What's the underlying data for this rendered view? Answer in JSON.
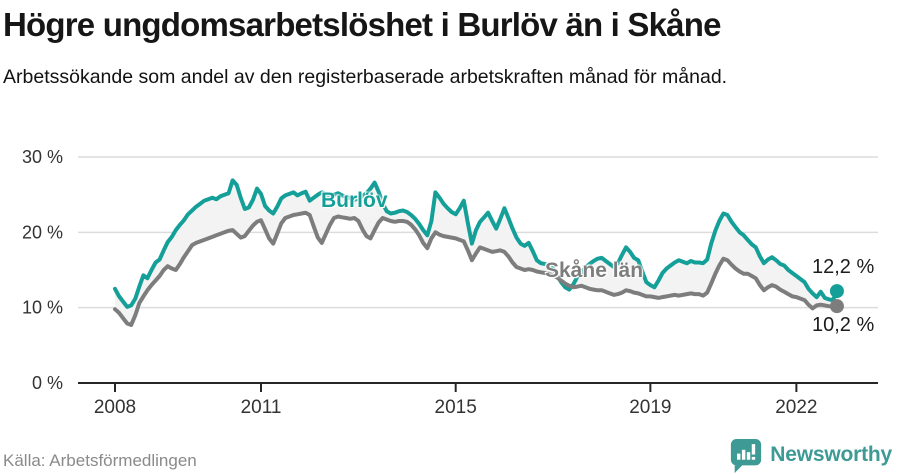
{
  "header": {
    "title": "Högre ungdomsarbetslöshet i Burlöv än i Skåne",
    "subtitle": "Arbetssökande som andel av den registerbaserade arbetskraften månad för månad."
  },
  "chart_data": {
    "type": "line",
    "title": "Högre ungdomsarbetslöshet i Burlöv än i Skåne",
    "x_unit": "month",
    "x_start": "2008-01",
    "x_end": "2022-11",
    "xticks": [
      2008,
      2011,
      2015,
      2019,
      2022
    ],
    "xtick_labels": [
      "2008",
      "2011",
      "2015",
      "2019",
      "2022"
    ],
    "yticks": [
      0,
      10,
      20,
      30
    ],
    "ytick_labels": [
      "0 %",
      "10 %",
      "20 %",
      "30 %"
    ],
    "ylim": [
      0,
      30
    ],
    "grid": "horizontal",
    "legend_position": "inline-labels",
    "band_fill": "#f3f3f3",
    "grid_color": "#dcdcdc",
    "axis_color": "#262626",
    "tick_label_color": "#333333",
    "series": [
      {
        "name": "Burlöv",
        "color": "#14a099",
        "end_label": "12,2 %",
        "end_value": 12.2,
        "values": [
          12.5,
          11.5,
          10.8,
          10.1,
          10.3,
          11.2,
          12.8,
          14.3,
          13.9,
          15.0,
          16.0,
          16.4,
          17.6,
          18.7,
          19.4,
          20.3,
          21.0,
          21.6,
          22.4,
          22.9,
          23.4,
          23.8,
          24.2,
          24.4,
          24.6,
          24.4,
          24.8,
          25.0,
          25.2,
          26.9,
          26.3,
          24.6,
          23.1,
          23.3,
          24.3,
          25.8,
          25.1,
          23.5,
          22.9,
          22.5,
          23.4,
          24.5,
          24.9,
          25.1,
          25.3,
          24.9,
          25.2,
          25.4,
          24.2,
          24.6,
          25.0,
          25.3,
          25.1,
          24.8,
          25.0,
          25.2,
          24.9,
          24.7,
          24.5,
          24.3,
          24.5,
          24.8,
          25.2,
          25.8,
          26.6,
          25.4,
          23.8,
          22.8,
          22.5,
          22.6,
          22.8,
          22.9,
          22.7,
          22.3,
          21.8,
          21.1,
          20.3,
          19.6,
          21.5,
          25.3,
          24.6,
          23.8,
          23.2,
          22.7,
          22.4,
          23.2,
          24.2,
          21.2,
          18.5,
          20.3,
          21.4,
          22.0,
          22.6,
          21.5,
          20.5,
          21.8,
          23.2,
          21.9,
          20.5,
          19.3,
          18.5,
          18.2,
          18.6,
          17.5,
          16.3,
          15.9,
          15.8,
          15.7,
          15.2,
          14.3,
          13.4,
          12.7,
          12.4,
          13.1,
          14.1,
          14.7,
          15.3,
          15.8,
          16.2,
          16.5,
          16.6,
          16.2,
          15.8,
          15.4,
          15.9,
          17.0,
          18.0,
          17.4,
          16.6,
          16.3,
          14.8,
          13.4,
          13.0,
          12.7,
          13.6,
          14.6,
          15.2,
          15.6,
          16.0,
          16.3,
          16.1,
          15.9,
          16.2,
          16.0,
          16.0,
          15.9,
          16.4,
          18.5,
          20.2,
          21.5,
          22.5,
          22.3,
          21.4,
          20.7,
          20.0,
          19.6,
          19.0,
          18.4,
          18.0,
          16.8,
          15.9,
          16.4,
          16.7,
          16.3,
          15.8,
          15.6,
          15.0,
          14.6,
          14.2,
          13.8,
          13.4,
          12.5,
          11.9,
          11.4,
          12.1,
          11.3,
          11.1,
          11.0,
          12.2
        ]
      },
      {
        "name": "Skåne län",
        "color": "#7d7d7d",
        "end_label": "10,2 %",
        "end_value": 10.2,
        "values": [
          9.8,
          9.3,
          8.6,
          7.9,
          7.7,
          9.0,
          10.6,
          11.5,
          12.3,
          13.0,
          13.6,
          14.2,
          15.0,
          15.5,
          15.2,
          15.0,
          15.8,
          16.7,
          17.5,
          18.3,
          18.6,
          18.8,
          19.0,
          19.2,
          19.4,
          19.6,
          19.8,
          20.0,
          20.2,
          20.3,
          19.8,
          19.3,
          19.5,
          20.2,
          20.9,
          21.4,
          21.6,
          20.4,
          19.2,
          18.5,
          19.8,
          21.2,
          21.9,
          22.1,
          22.3,
          22.4,
          22.5,
          22.6,
          22.3,
          20.8,
          19.3,
          18.6,
          19.8,
          21.0,
          21.9,
          22.1,
          22.0,
          21.9,
          21.8,
          21.9,
          21.5,
          20.4,
          19.5,
          19.2,
          20.3,
          21.3,
          21.9,
          21.7,
          21.5,
          21.4,
          21.5,
          21.5,
          21.4,
          21.0,
          20.4,
          19.6,
          18.6,
          17.9,
          19.2,
          20.0,
          19.7,
          19.5,
          19.4,
          19.3,
          19.2,
          19.0,
          18.8,
          17.6,
          16.3,
          17.2,
          18.0,
          17.8,
          17.6,
          17.4,
          17.5,
          17.6,
          17.4,
          16.8,
          16.0,
          15.4,
          15.2,
          15.0,
          15.1,
          15.0,
          14.8,
          14.7,
          14.6,
          14.5,
          14.3,
          14.0,
          13.6,
          13.2,
          12.9,
          12.7,
          12.8,
          12.9,
          12.7,
          12.5,
          12.4,
          12.3,
          12.3,
          12.1,
          11.9,
          11.7,
          11.8,
          12.0,
          12.3,
          12.2,
          12.0,
          11.9,
          11.7,
          11.5,
          11.5,
          11.4,
          11.3,
          11.4,
          11.5,
          11.6,
          11.7,
          11.6,
          11.7,
          11.8,
          11.9,
          11.8,
          11.8,
          11.6,
          12.0,
          13.2,
          14.5,
          15.6,
          16.5,
          16.3,
          15.7,
          15.2,
          14.8,
          14.5,
          14.5,
          14.2,
          13.9,
          13.0,
          12.3,
          12.7,
          13.0,
          12.8,
          12.4,
          12.1,
          11.8,
          11.5,
          11.4,
          11.2,
          11.0,
          10.4,
          9.9,
          10.3,
          10.4,
          10.3,
          10.2,
          10.1,
          10.2
        ]
      }
    ]
  },
  "footer": {
    "source": "Källa: Arbetsförmedlingen",
    "brand": "Newsworthy",
    "brand_color": "#3d9a94"
  }
}
